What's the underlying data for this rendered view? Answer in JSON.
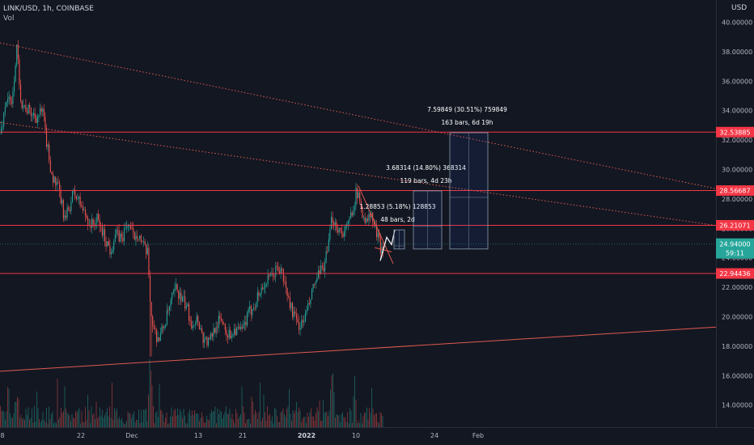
{
  "header": {
    "symbol": "LINK/USD, 1h, COINBASE",
    "indicator": "Vol"
  },
  "currency": "USD",
  "price_badge": {
    "price": "24.94000",
    "countdown": "59:11"
  },
  "colors": {
    "bg": "#131722",
    "up": "#26a69a",
    "down": "#ef5350",
    "level": "#f23645",
    "trend": "#e05a4e",
    "box": "#8a9bb0"
  },
  "chart_data": {
    "type": "candlestick",
    "title": "LINK/USD, 1h, COINBASE",
    "ylabel": "USD",
    "ylim": [
      12.0,
      41.0
    ],
    "yticks": [
      "40.00000",
      "38.00000",
      "36.00000",
      "34.00000",
      "32.00000",
      "30.00000",
      "28.00000",
      "26.00000",
      "24.00000",
      "22.00000",
      "20.00000",
      "18.00000",
      "16.00000",
      "14.00000"
    ],
    "xticks": [
      "8",
      "22",
      "Dec",
      "13",
      "21",
      "2022",
      "10",
      "24",
      "Feb"
    ],
    "price_path": [
      [
        0,
        32.4
      ],
      [
        8,
        35.0
      ],
      [
        14,
        34.2
      ],
      [
        20,
        38.3
      ],
      [
        26,
        34.5
      ],
      [
        34,
        34.0
      ],
      [
        44,
        33.6
      ],
      [
        52,
        33.9
      ],
      [
        58,
        31.5
      ],
      [
        64,
        29.5
      ],
      [
        72,
        28.6
      ],
      [
        80,
        26.5
      ],
      [
        90,
        28.4
      ],
      [
        96,
        28.0
      ],
      [
        104,
        27.0
      ],
      [
        112,
        26.2
      ],
      [
        120,
        26.6
      ],
      [
        128,
        25.5
      ],
      [
        136,
        24.5
      ],
      [
        142,
        25.6
      ],
      [
        150,
        25.3
      ],
      [
        158,
        26.4
      ],
      [
        164,
        25.4
      ],
      [
        170,
        25.8
      ],
      [
        176,
        24.8
      ],
      [
        182,
        24.2
      ],
      [
        186,
        20.3
      ],
      [
        190,
        19.0
      ],
      [
        196,
        18.5
      ],
      [
        204,
        19.7
      ],
      [
        212,
        21.2
      ],
      [
        218,
        22.0
      ],
      [
        222,
        21.3
      ],
      [
        230,
        20.7
      ],
      [
        236,
        19.6
      ],
      [
        244,
        19.9
      ],
      [
        250,
        18.6
      ],
      [
        258,
        18.2
      ],
      [
        266,
        19.5
      ],
      [
        274,
        19.8
      ],
      [
        282,
        18.7
      ],
      [
        290,
        19.2
      ],
      [
        298,
        18.9
      ],
      [
        304,
        19.8
      ],
      [
        310,
        20.5
      ],
      [
        318,
        21.4
      ],
      [
        326,
        22.2
      ],
      [
        334,
        22.6
      ],
      [
        342,
        23.3
      ],
      [
        348,
        23.0
      ],
      [
        354,
        21.6
      ],
      [
        360,
        20.5
      ],
      [
        366,
        19.6
      ],
      [
        372,
        19.4
      ],
      [
        380,
        20.5
      ],
      [
        388,
        22.2
      ],
      [
        396,
        23.0
      ],
      [
        404,
        24.2
      ],
      [
        410,
        26.8
      ],
      [
        416,
        26.1
      ],
      [
        422,
        25.8
      ],
      [
        428,
        25.9
      ],
      [
        434,
        27.1
      ],
      [
        440,
        28.5
      ],
      [
        446,
        27.4
      ],
      [
        452,
        26.4
      ],
      [
        458,
        26.9
      ],
      [
        464,
        25.8
      ],
      [
        470,
        24.7
      ],
      [
        474,
        24.5
      ]
    ],
    "up_spike": [
      20,
      38.3
    ],
    "down_spike": [
      186,
      17.3
    ],
    "levels": [
      {
        "label": "32.53885",
        "value": 32.54
      },
      {
        "label": "28.56687",
        "value": 28.57
      },
      {
        "label": "26.21071",
        "value": 26.21
      },
      {
        "label": "22.94436",
        "value": 22.94
      }
    ],
    "trendlines": [
      {
        "name": "upper-downtrend",
        "from": [
          0,
          38.6
        ],
        "to": [
          885,
          28.7
        ],
        "style": "dotted"
      },
      {
        "name": "lower-downtrend",
        "from": [
          0,
          33.2
        ],
        "to": [
          885,
          26.2
        ],
        "style": "dotted"
      },
      {
        "name": "rising-support",
        "from": [
          0,
          16.3
        ],
        "to": [
          885,
          19.3
        ],
        "style": "solid"
      }
    ],
    "projections": [
      {
        "text1": "1.28853 (5.18%) 128853",
        "text2": "48 bars, 2d",
        "x_from": 487,
        "x_to": 500,
        "y_top": 25.9,
        "y_bottom": 24.6
      },
      {
        "text1": "3.68314 (14.80%) 368314",
        "text2": "119 bars, 4d 23h",
        "x_from": 511,
        "x_to": 546,
        "y_top": 28.55,
        "y_bottom": 24.6
      },
      {
        "text1": "7.59849 (30.51%) 759849",
        "text2": "163 bars, 6d 19h",
        "x_from": 556,
        "x_to": 603,
        "y_top": 32.5,
        "y_bottom": 24.6
      }
    ]
  }
}
